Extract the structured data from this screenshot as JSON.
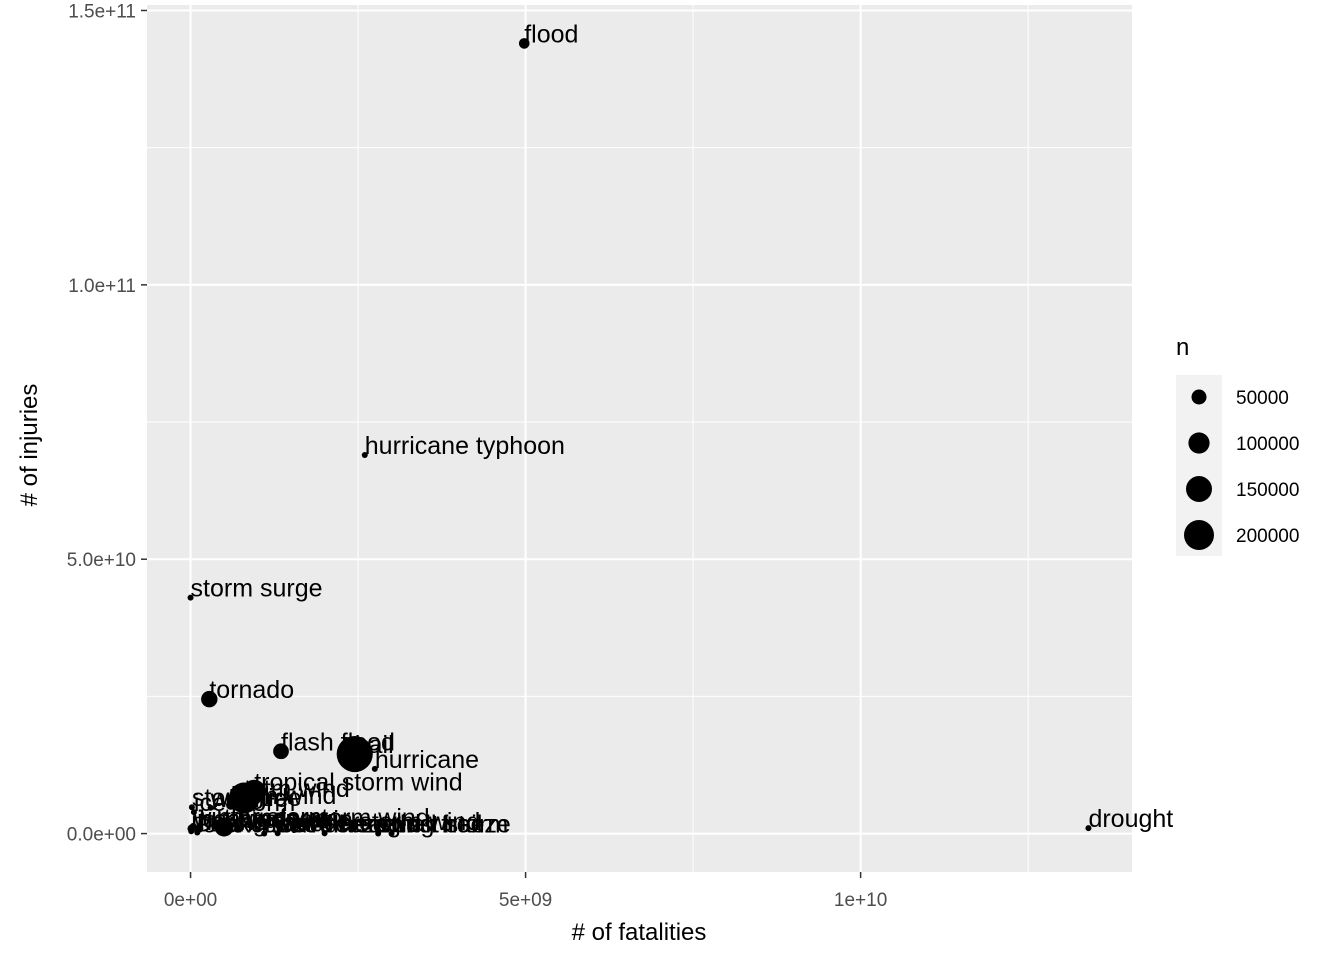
{
  "chart_data": {
    "type": "scatter",
    "xlabel": "# of fatalities",
    "ylabel": "# of injuries",
    "xlim": [
      -650000000,
      14050000000
    ],
    "ylim": [
      -7000000000,
      151000000000
    ],
    "x_ticks": [
      {
        "value": 0,
        "label": "0e+00"
      },
      {
        "value": 5000000000,
        "label": "5e+09"
      },
      {
        "value": 10000000000,
        "label": "1e+10"
      }
    ],
    "y_ticks": [
      {
        "value": 0,
        "label": "0.0e+00"
      },
      {
        "value": 50000000000,
        "label": "5.0e+10"
      },
      {
        "value": 100000000000,
        "label": "1.0e+11"
      },
      {
        "value": 150000000000,
        "label": "1.5e+11"
      }
    ],
    "x_minor": [
      2500000000,
      7500000000,
      12500000000
    ],
    "y_minor": [
      25000000000,
      75000000000,
      125000000000
    ],
    "grid": true,
    "size_legend": {
      "title": "n",
      "position": "right",
      "entries": [
        {
          "value": 50000,
          "label": "50000"
        },
        {
          "value": 100000,
          "label": "100000"
        },
        {
          "value": 150000,
          "label": "150000"
        },
        {
          "value": 200000,
          "label": "200000"
        }
      ]
    },
    "points": [
      {
        "label": "flood",
        "x": 4980000000,
        "y": 144000000000,
        "n": 25000
      },
      {
        "label": "hurricane typhoon",
        "x": 2600000000,
        "y": 69000000000,
        "n": 90
      },
      {
        "label": "storm surge",
        "x": 0,
        "y": 43000000000,
        "n": 250
      },
      {
        "label": "tornado",
        "x": 280000000,
        "y": 24500000000,
        "n": 60000
      },
      {
        "label": "flash flood",
        "x": 1350000000,
        "y": 15000000000,
        "n": 55000
      },
      {
        "label": "hail",
        "x": 2450000000,
        "y": 14500000000,
        "n": 290000
      },
      {
        "label": "hurricane",
        "x": 2750000000,
        "y": 11800000000,
        "n": 180
      },
      {
        "label": "tropical storm wind",
        "x": 950000000,
        "y": 7700000000,
        "n": 120000
      },
      {
        "label": "tstm wind",
        "x": 800000000,
        "y": 6500000000,
        "n": 210000
      },
      {
        "label": "storm tide",
        "x": 20000000,
        "y": 4800000000,
        "n": 150
      },
      {
        "label": "wildfire",
        "x": 300000000,
        "y": 4700000000,
        "n": 4000
      },
      {
        "label": "ice storm",
        "x": 50000000,
        "y": 3900000000,
        "n": 2000
      },
      {
        "label": "high wind",
        "x": 600000000,
        "y": 5200000000,
        "n": 20000
      },
      {
        "label": "winter storm",
        "x": 40000000,
        "y": 1300000000,
        "n": 11000
      },
      {
        "label": "heavy rain",
        "x": 700000000,
        "y": 800000000,
        "n": 11000
      },
      {
        "label": "lightning",
        "x": 15000000,
        "y": 900000000,
        "n": 15000
      },
      {
        "label": "strong wind",
        "x": 100000000,
        "y": 200000000,
        "n": 3000
      },
      {
        "label": "thunderstorm wind",
        "x": 500000000,
        "y": 1200000000,
        "n": 80000
      },
      {
        "label": "heavy snow",
        "x": 130000000,
        "y": 900000000,
        "n": 15000
      },
      {
        "label": "extreme cold",
        "x": 1300000000,
        "y": 70000000,
        "n": 800
      },
      {
        "label": "frost freeze",
        "x": 1100000000,
        "y": 10000000,
        "n": 1400
      },
      {
        "label": "marine thunderstorm wind",
        "x": 10000000,
        "y": 430000000,
        "n": 5000
      },
      {
        "label": "small hail",
        "x": 2800000000,
        "y": 20000000,
        "n": 200
      },
      {
        "label": "excessive heat",
        "x": 500000000,
        "y": 7000000,
        "n": 1700
      },
      {
        "label": "damaging freeze",
        "x": 2000000000,
        "y": 50000000,
        "n": 100
      },
      {
        "label": "dust storm",
        "x": 3000000000,
        "y": 5000000,
        "n": 400
      },
      {
        "label": "drought",
        "x": 13400000000,
        "y": 1000000000,
        "n": 2500
      }
    ]
  }
}
